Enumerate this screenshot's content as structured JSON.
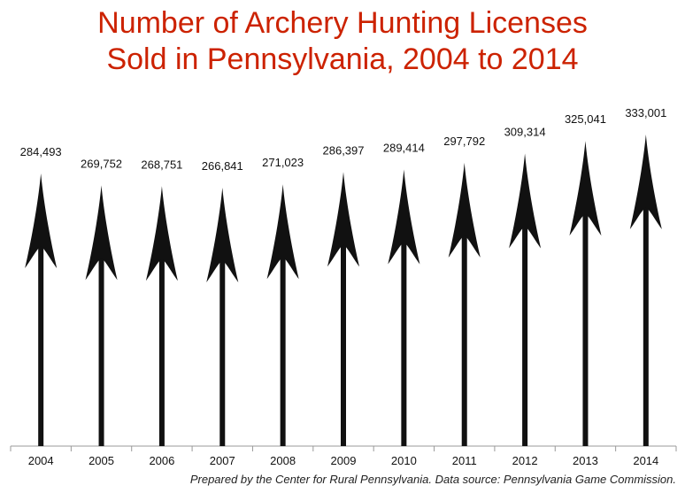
{
  "title_line1": "Number of Archery Hunting Licenses",
  "title_line2": "Sold in Pennsylvania, 2004 to 2014",
  "footnote": "Prepared by the Center for Rural Pennsylvania. Data source: Pennsylvania Game Commission.",
  "colors": {
    "title": "#cc2200",
    "arrow": "#111111",
    "axis": "#999999"
  },
  "chart_data": {
    "type": "bar",
    "mark": "arrow",
    "title": "Number of Archery Hunting Licenses Sold in Pennsylvania, 2004 to 2014",
    "categories": [
      "2004",
      "2005",
      "2006",
      "2007",
      "2008",
      "2009",
      "2010",
      "2011",
      "2012",
      "2013",
      "2014"
    ],
    "values": [
      284493,
      269752,
      268751,
      266841,
      271023,
      286397,
      289414,
      297792,
      309314,
      325041,
      333001
    ],
    "data_labels": [
      "284,493",
      "269,752",
      "268,751",
      "266,841",
      "271,023",
      "286,397",
      "289,414",
      "297,792",
      "309,314",
      "325,041",
      "333,001"
    ],
    "xlabel": "",
    "ylabel": "",
    "grid": false,
    "legend": "none"
  }
}
